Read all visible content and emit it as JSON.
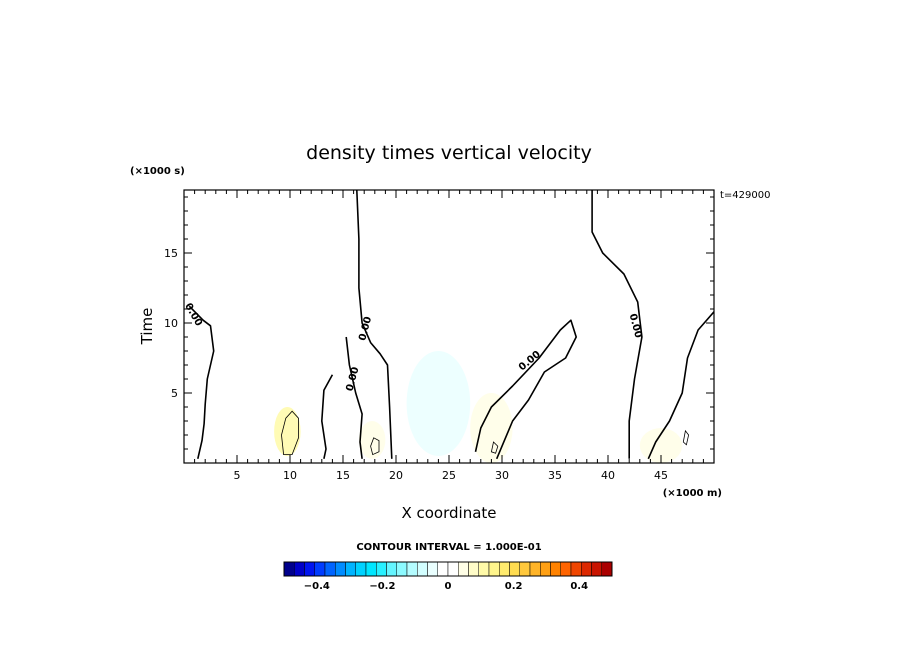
{
  "chart_data": {
    "type": "heatmap",
    "title": "density times vertical velocity",
    "xlabel": "X coordinate",
    "ylabel": "Time",
    "x_unit_label": "(×1000 m)",
    "y_unit_label": "(×1000 s)",
    "time_stamp": "t=429000",
    "xlim": [
      0,
      50
    ],
    "ylim": [
      0,
      19.5
    ],
    "x_ticks": [
      5,
      10,
      15,
      20,
      25,
      30,
      35,
      40,
      45
    ],
    "x_tick_labels": [
      "5",
      "10",
      "15",
      "20",
      "25",
      "30",
      "35",
      "40",
      "45"
    ],
    "y_ticks": [
      5,
      10,
      15
    ],
    "y_tick_labels": [
      "5",
      "10",
      "15"
    ],
    "contour_interval_text": "CONTOUR INTERVAL = 1.000E-01",
    "contour_labels": [
      "0.00",
      "0.00",
      "0.00",
      "0.00",
      "0.00"
    ],
    "colorbar": {
      "min": -0.5,
      "max": 0.5,
      "tick_values": [
        -0.4,
        -0.2,
        0,
        0.2,
        0.4
      ],
      "tick_labels": [
        "−0.4",
        "−0.2",
        "0",
        "0.2",
        "0.4"
      ],
      "colors": [
        "#00008c",
        "#0000c8",
        "#0014f0",
        "#003cff",
        "#0064ff",
        "#008cff",
        "#00b4ff",
        "#00d2ff",
        "#00e6ff",
        "#28f0ff",
        "#64f5ff",
        "#8cfaff",
        "#b4fcff",
        "#d2feff",
        "#eaffff",
        "#ffffff",
        "#ffffff",
        "#fffee6",
        "#fffcc8",
        "#fffaa8",
        "#fff58c",
        "#ffeb6e",
        "#ffdc50",
        "#ffc83c",
        "#ffb428",
        "#ffa014",
        "#ff8200",
        "#ff6400",
        "#f04600",
        "#dc2800",
        "#c81400",
        "#aa0000"
      ]
    },
    "regions": [
      {
        "x0": 0,
        "x1": 3,
        "y0": 0,
        "y1": 1.2,
        "value": -0.03
      },
      {
        "x0": 3,
        "x1": 13,
        "y0": 0,
        "y1": 9,
        "value": 0.03
      },
      {
        "x0": 8.5,
        "x1": 11,
        "y0": 0.5,
        "y1": 4,
        "value": 0.12
      },
      {
        "x0": 12,
        "x1": 16,
        "y0": 0,
        "y1": 3,
        "value": -0.03
      },
      {
        "x0": 16.5,
        "x1": 19,
        "y0": 0.3,
        "y1": 3,
        "value": 0.05
      },
      {
        "x0": 16,
        "x1": 50,
        "y0": 9,
        "y1": 19.5,
        "value": -0.02
      },
      {
        "x0": 21,
        "x1": 27,
        "y0": 0.5,
        "y1": 8,
        "value": -0.05
      },
      {
        "x0": 27,
        "x1": 31,
        "y0": 0,
        "y1": 5,
        "value": 0.04
      },
      {
        "x0": 31,
        "x1": 42,
        "y0": 0,
        "y1": 7,
        "value": -0.03
      },
      {
        "x0": 43,
        "x1": 47,
        "y0": 0,
        "y1": 2.5,
        "value": 0.04
      },
      {
        "x0": 47,
        "x1": 50,
        "y0": 0,
        "y1": 4,
        "value": -0.03
      }
    ],
    "zero_contours": [
      [
        [
          0.5,
          11.2
        ],
        [
          1.8,
          10.2
        ],
        [
          2.5,
          9.8
        ],
        [
          2.8,
          8
        ],
        [
          2.2,
          6
        ],
        [
          2,
          4.2
        ],
        [
          1.9,
          2.8
        ],
        [
          1.7,
          1.6
        ],
        [
          1.3,
          0.3
        ]
      ],
      [
        [
          16.3,
          19.5
        ],
        [
          16.5,
          16
        ],
        [
          16.5,
          12.5
        ],
        [
          16.8,
          10
        ],
        [
          17.6,
          8.6
        ],
        [
          18.5,
          7.8
        ],
        [
          19.2,
          7
        ],
        [
          19.4,
          4
        ],
        [
          19.6,
          0.3
        ]
      ],
      [
        [
          15.3,
          9
        ],
        [
          15.6,
          7
        ],
        [
          16.2,
          5
        ],
        [
          16.8,
          3.5
        ],
        [
          16.6,
          1.5
        ],
        [
          16.8,
          0.3
        ]
      ],
      [
        [
          14,
          6.3
        ],
        [
          13.2,
          5.2
        ],
        [
          13,
          3
        ],
        [
          13.4,
          1
        ],
        [
          13.2,
          0.3
        ]
      ],
      [
        [
          27.5,
          0.8
        ],
        [
          28,
          2.5
        ],
        [
          29,
          4
        ],
        [
          31,
          5.5
        ],
        [
          33.5,
          7.5
        ],
        [
          35.5,
          9.5
        ],
        [
          36.5,
          10.2
        ],
        [
          37,
          9
        ],
        [
          36,
          7.5
        ],
        [
          34,
          6.5
        ],
        [
          32.5,
          4.5
        ],
        [
          31,
          3
        ],
        [
          30,
          1.2
        ],
        [
          29.5,
          0.3
        ]
      ],
      [
        [
          38.5,
          19.5
        ],
        [
          38.5,
          16.5
        ],
        [
          39.5,
          15
        ],
        [
          41.5,
          13.5
        ],
        [
          42.8,
          11.5
        ],
        [
          43.2,
          9
        ],
        [
          42.5,
          6
        ],
        [
          42,
          3
        ],
        [
          42,
          0.3
        ]
      ],
      [
        [
          50,
          10.8
        ],
        [
          48.5,
          9.5
        ],
        [
          47.5,
          7.5
        ],
        [
          47,
          5
        ],
        [
          45.8,
          3
        ],
        [
          44.5,
          1.5
        ],
        [
          43.8,
          0.3
        ]
      ]
    ],
    "closed_contours": [
      [
        [
          9.2,
          2
        ],
        [
          9.6,
          3.2
        ],
        [
          10.2,
          3.7
        ],
        [
          10.8,
          3.2
        ],
        [
          10.8,
          1.8
        ],
        [
          10.2,
          0.6
        ],
        [
          9.4,
          0.6
        ]
      ],
      [
        [
          17.8,
          0.6
        ],
        [
          17.6,
          1.2
        ],
        [
          17.9,
          1.8
        ],
        [
          18.4,
          1.6
        ],
        [
          18.4,
          0.8
        ]
      ],
      [
        [
          29,
          0.8
        ],
        [
          29.2,
          1.5
        ],
        [
          29.6,
          1.2
        ],
        [
          29.4,
          0.7
        ]
      ],
      [
        [
          47.1,
          1.5
        ],
        [
          47.3,
          2.3
        ],
        [
          47.6,
          2
        ],
        [
          47.4,
          1.3
        ]
      ]
    ]
  }
}
